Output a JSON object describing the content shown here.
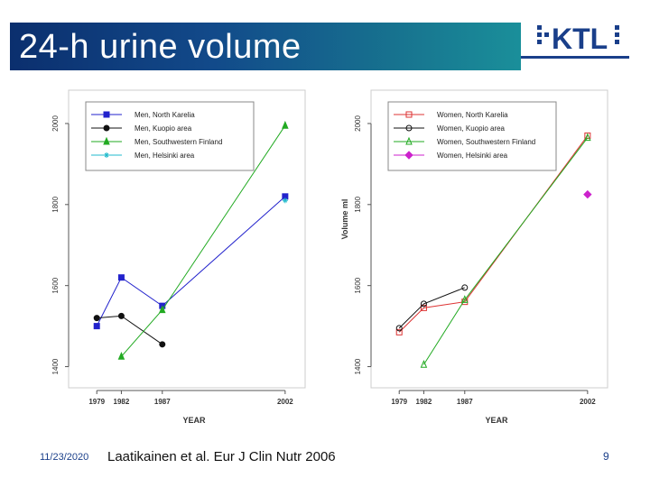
{
  "slide": {
    "title": "24-h urine volume",
    "date": "11/23/2020",
    "citation": "Laatikainen et al. Eur J Clin Nutr 2006",
    "page_number": "9",
    "logo_text": "KTL"
  },
  "chart_data": [
    {
      "type": "line",
      "title": "",
      "xlabel": "YEAR",
      "ylabel": "",
      "xlim": [
        1976,
        2004
      ],
      "ylim": [
        1350,
        2080
      ],
      "x_ticks": [
        1979,
        1982,
        1987,
        2002
      ],
      "y_ticks": [
        1400,
        1600,
        1800,
        2000
      ],
      "legend_position": "top-left",
      "series": [
        {
          "name": "Men, North Karelia",
          "color": "#2222cc",
          "marker": "square",
          "x": [
            1979,
            1982,
            1987,
            2002
          ],
          "y": [
            1500,
            1620,
            1550,
            1820
          ]
        },
        {
          "name": "Men, Kuopio area",
          "color": "#111111",
          "marker": "circle",
          "x": [
            1979,
            1982,
            1987
          ],
          "y": [
            1520,
            1525,
            1455
          ]
        },
        {
          "name": "Men, Southwestern Finland",
          "color": "#22aa22",
          "marker": "triangle",
          "x": [
            1982,
            1987,
            2002
          ],
          "y": [
            1425,
            1540,
            1995
          ]
        },
        {
          "name": "Men, Helsinki area",
          "color": "#22bbcc",
          "marker": "star",
          "x": [
            2002
          ],
          "y": [
            1810
          ]
        }
      ]
    },
    {
      "type": "line",
      "title": "",
      "xlabel": "YEAR",
      "ylabel": "Volume ml",
      "xlim": [
        1976,
        2004
      ],
      "ylim": [
        1350,
        2080
      ],
      "x_ticks": [
        1979,
        1982,
        1987,
        2002
      ],
      "y_ticks": [
        1400,
        1600,
        1800,
        2000
      ],
      "legend_position": "top-left",
      "series": [
        {
          "name": "Women, North Karelia",
          "color": "#dd3333",
          "marker": "square-open",
          "x": [
            1979,
            1982,
            1987,
            2002
          ],
          "y": [
            1485,
            1545,
            1560,
            1970
          ]
        },
        {
          "name": "Women, Kuopio area",
          "color": "#111111",
          "marker": "circle-open",
          "x": [
            1979,
            1982,
            1987
          ],
          "y": [
            1495,
            1555,
            1595
          ]
        },
        {
          "name": "Women, Southwestern Finland",
          "color": "#22aa22",
          "marker": "triangle-open",
          "x": [
            1982,
            1987,
            2002
          ],
          "y": [
            1405,
            1565,
            1965
          ]
        },
        {
          "name": "Women, Helsinki area",
          "color": "#cc22cc",
          "marker": "diamond",
          "x": [
            2002
          ],
          "y": [
            1825
          ]
        }
      ]
    }
  ]
}
